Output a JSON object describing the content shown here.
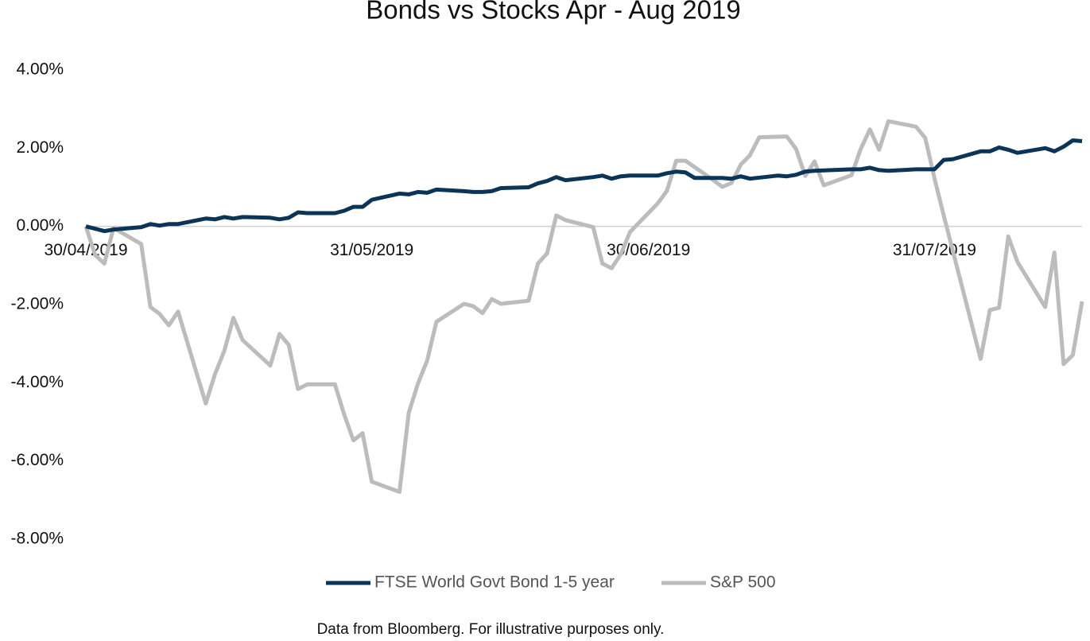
{
  "chart_data": {
    "type": "line",
    "title": "Bonds vs Stocks Apr - Aug 2019",
    "note": "Data from Bloomberg. For illustrative purposes only.",
    "xlim": [
      0,
      108
    ],
    "xticks": [
      {
        "value": 0,
        "label": "30/04/2019"
      },
      {
        "value": 31,
        "label": "31/05/2019"
      },
      {
        "value": 61,
        "label": "30/06/2019"
      },
      {
        "value": 92,
        "label": "31/07/2019"
      }
    ],
    "ylim": [
      -8,
      4
    ],
    "yticks": [
      {
        "value": 4,
        "label": "4.00%"
      },
      {
        "value": 2,
        "label": "2.00%"
      },
      {
        "value": 0,
        "label": "0.00%"
      },
      {
        "value": -2,
        "label": "-2.00%"
      },
      {
        "value": -4,
        "label": "-4.00%"
      },
      {
        "value": -6,
        "label": "-6.00%"
      },
      {
        "value": -8,
        "label": "-8.00%"
      }
    ],
    "legend": "bottom",
    "series": [
      {
        "name": "FTSE World Govt Bond 1-5 year",
        "color": "#0b3558",
        "x": [
          0,
          1,
          2,
          3,
          5,
          6,
          7,
          8,
          9,
          10,
          13,
          14,
          15,
          16,
          17,
          20,
          21,
          22,
          23,
          24,
          27,
          28,
          29,
          30,
          31,
          34,
          35,
          36,
          37,
          38,
          41,
          42,
          43,
          44,
          45,
          48,
          49,
          50,
          51,
          52,
          55,
          56,
          57,
          58,
          59,
          62,
          63,
          64,
          65,
          66,
          68,
          69,
          70,
          71,
          72,
          75,
          76,
          77,
          78,
          79,
          83,
          84,
          85,
          86,
          87,
          90,
          91,
          92,
          93,
          94,
          97,
          98,
          99,
          100,
          101,
          104,
          105,
          106,
          107,
          108
        ],
        "values": [
          0,
          -0.06,
          -0.12,
          -0.08,
          -0.04,
          -0.02,
          0.06,
          0.02,
          0.06,
          0.06,
          0.2,
          0.18,
          0.24,
          0.2,
          0.24,
          0.22,
          0.18,
          0.22,
          0.36,
          0.34,
          0.34,
          0.4,
          0.5,
          0.5,
          0.68,
          0.84,
          0.82,
          0.88,
          0.86,
          0.94,
          0.9,
          0.88,
          0.88,
          0.9,
          0.98,
          1.0,
          1.1,
          1.16,
          1.26,
          1.18,
          1.26,
          1.3,
          1.22,
          1.28,
          1.3,
          1.3,
          1.36,
          1.4,
          1.38,
          1.24,
          1.24,
          1.24,
          1.22,
          1.28,
          1.22,
          1.3,
          1.28,
          1.32,
          1.4,
          1.42,
          1.46,
          1.46,
          1.5,
          1.44,
          1.42,
          1.46,
          1.46,
          1.46,
          1.7,
          1.72,
          1.92,
          1.92,
          2.02,
          1.96,
          1.88,
          2.0,
          1.92,
          2.04,
          2.2,
          2.18
        ]
      },
      {
        "name": "S&P 500",
        "color": "#bcbcbc",
        "x": [
          0,
          1,
          2,
          3,
          6,
          7,
          8,
          9,
          10,
          13,
          14,
          15,
          16,
          17,
          20,
          21,
          22,
          23,
          24,
          27,
          28,
          29,
          30,
          31,
          34,
          35,
          36,
          37,
          38,
          41,
          42,
          43,
          44,
          45,
          48,
          49,
          50,
          51,
          52,
          55,
          56,
          57,
          58,
          59,
          62,
          63,
          64,
          65,
          68,
          69,
          70,
          71,
          72,
          73,
          76,
          77,
          78,
          79,
          80,
          83,
          84,
          85,
          86,
          87,
          90,
          91,
          92,
          93,
          97,
          98,
          99,
          100,
          101,
          104,
          105,
          106,
          107,
          108
        ],
        "values": [
          0,
          -0.73,
          -0.95,
          -0.04,
          -0.45,
          -2.06,
          -2.24,
          -2.53,
          -2.18,
          -4.53,
          -3.78,
          -3.19,
          -2.34,
          -2.91,
          -3.56,
          -2.75,
          -3.03,
          -4.16,
          -4.04,
          -4.04,
          -4.81,
          -5.47,
          -5.29,
          -6.53,
          -6.79,
          -4.77,
          -4.02,
          -3.43,
          -2.44,
          -1.98,
          -2.04,
          -2.22,
          -1.86,
          -1.98,
          -1.9,
          -0.95,
          -0.69,
          0.28,
          0.16,
          -0.02,
          -0.95,
          -1.07,
          -0.71,
          -0.14,
          0.59,
          0.91,
          1.68,
          1.68,
          1.19,
          1.01,
          1.11,
          1.58,
          1.82,
          2.28,
          2.3,
          1.98,
          1.29,
          1.66,
          1.05,
          1.31,
          1.98,
          2.48,
          1.96,
          2.69,
          2.55,
          2.26,
          1.23,
          0.28,
          -3.39,
          -2.14,
          -2.08,
          -0.26,
          -0.91,
          -2.06,
          -0.67,
          -3.52,
          -3.29,
          -1.92
        ]
      }
    ]
  }
}
